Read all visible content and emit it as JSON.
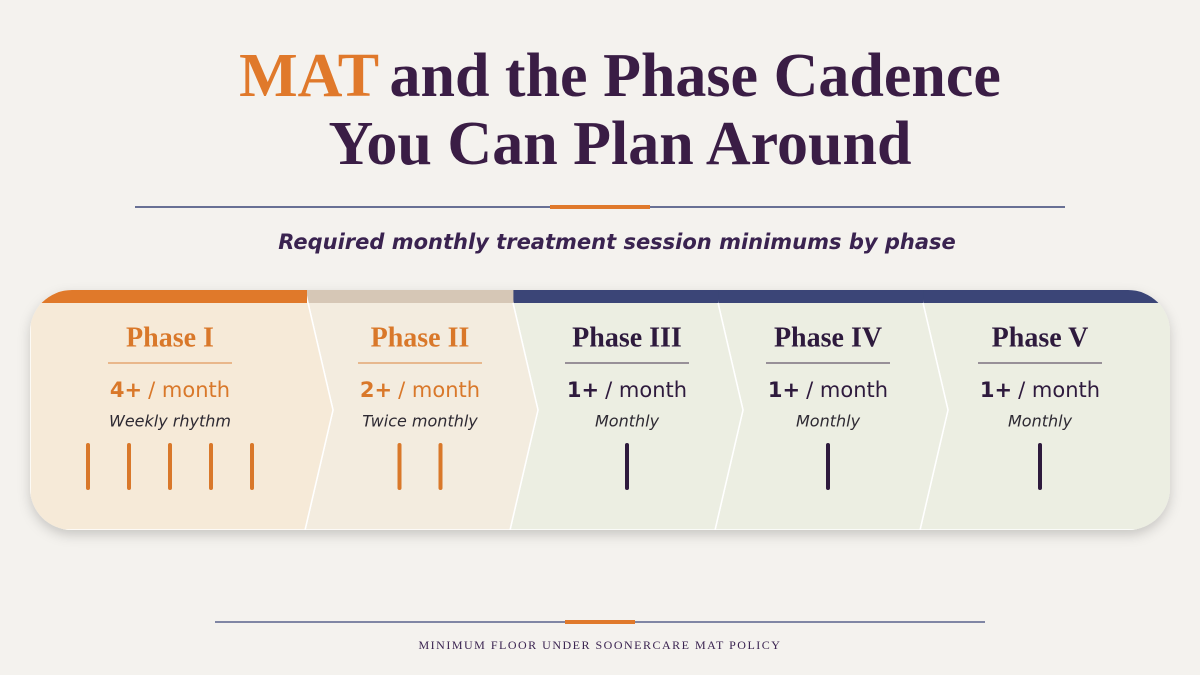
{
  "header": {
    "title": {
      "highlight": "MAT",
      "line1": "and the Phase Cadence",
      "line2": "You Can Plan Around"
    },
    "subtitle": "Required monthly treatment session minimums by phase"
  },
  "phases": [
    {
      "name": "Phase I",
      "rate": "4+",
      "unit": "/ month",
      "rhythm": "Weekly rhythm",
      "marks": 5,
      "accent": "#d9782a",
      "band": "#e0792b",
      "fill": "#f6ead8"
    },
    {
      "name": "Phase II",
      "rate": "2+",
      "unit": "/ month",
      "rhythm": "Twice monthly",
      "marks": 2,
      "accent": "#d9782a",
      "band": "#d6c7b6",
      "fill": "#f3ecdf"
    },
    {
      "name": "Phase III",
      "rate": "1+",
      "unit": "/ month",
      "rhythm": "Monthly",
      "marks": 1,
      "accent": "#2e1a3d",
      "band": "#3a4577",
      "fill": "#eceee2"
    },
    {
      "name": "Phase IV",
      "rate": "1+",
      "unit": "/ month",
      "rhythm": "Monthly",
      "marks": 1,
      "accent": "#2e1a3d",
      "band": "#3a4577",
      "fill": "#eceee2"
    },
    {
      "name": "Phase V",
      "rate": "1+",
      "unit": "/ month",
      "rhythm": "Monthly",
      "marks": 1,
      "accent": "#2e1a3d",
      "band": "#3a4577",
      "fill": "#eceee2"
    }
  ],
  "footer": "MINIMUM FLOOR UNDER SOONERCARE MAT POLICY"
}
